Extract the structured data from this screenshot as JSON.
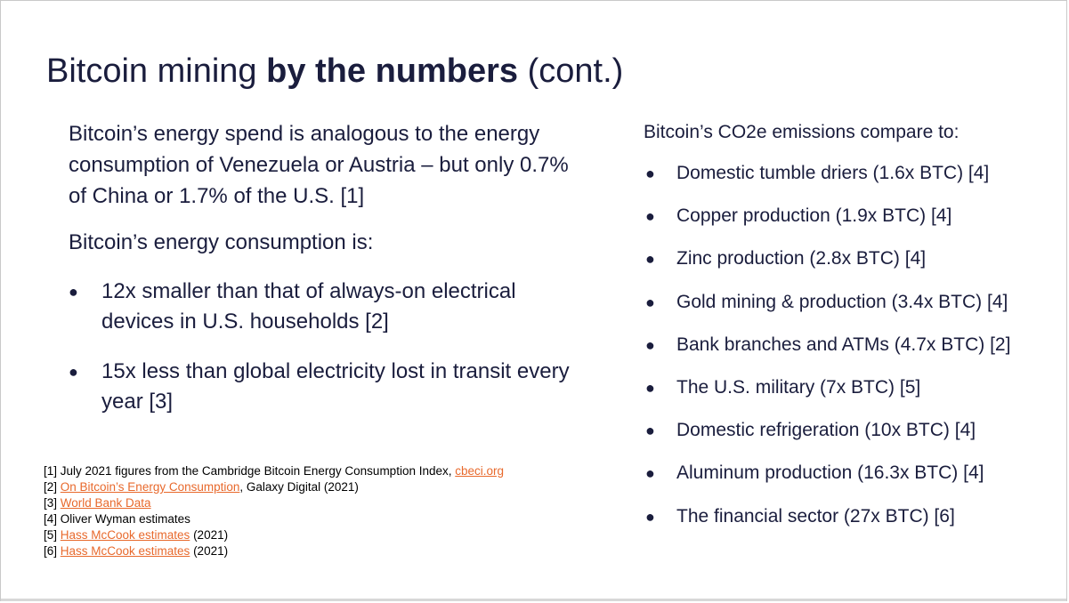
{
  "title": {
    "part1": "Bitcoin mining ",
    "bold": "by the numbers",
    "part2": " (cont.)"
  },
  "left": {
    "para1": "Bitcoin’s energy spend is analogous to the energy consumption of Venezuela or Austria – but only 0.7% of China or 1.7% of the U.S. [1]",
    "para2": "Bitcoin’s energy consumption is:",
    "bullets": [
      "12x smaller than that of always-on electrical devices in U.S. households [2]",
      "15x less than global electricity lost in transit every year [3]"
    ]
  },
  "right": {
    "heading": "Bitcoin’s CO2e emissions compare to:",
    "bullets": [
      "Domestic tumble driers (1.6x BTC) [4]",
      "Copper production (1.9x BTC) [4]",
      "Zinc production (2.8x BTC) [4]",
      "Gold mining & production (3.4x BTC) [4]",
      "Bank branches and ATMs (4.7x BTC) [2]",
      "The U.S. military (7x BTC) [5]",
      "Domestic refrigeration (10x BTC) [4]",
      "Aluminum production (16.3x BTC) [4]",
      "The financial sector (27x BTC) [6]"
    ]
  },
  "references": {
    "r1_text": "[1] July 2021 figures from the Cambridge Bitcoin Energy Consumption Index, ",
    "r1_link": "cbeci.org",
    "r2_prefix": "[2] ",
    "r2_link": "On Bitcoin’s Energy Consumption",
    "r2_suffix": ", Galaxy Digital (2021)",
    "r3_prefix": "[3] ",
    "r3_link": "World Bank Data",
    "r4_text": "[4] Oliver Wyman estimates",
    "r5_prefix": "[5] ",
    "r5_link": "Hass McCook estimates",
    "r5_suffix": " (2021)",
    "r6_prefix": "[6] ",
    "r6_link": "Hass McCook estimates",
    "r6_suffix": " (2021)"
  },
  "colors": {
    "text": "#1a1d3d",
    "link": "#e8692c"
  },
  "bullet_glyph": "●"
}
